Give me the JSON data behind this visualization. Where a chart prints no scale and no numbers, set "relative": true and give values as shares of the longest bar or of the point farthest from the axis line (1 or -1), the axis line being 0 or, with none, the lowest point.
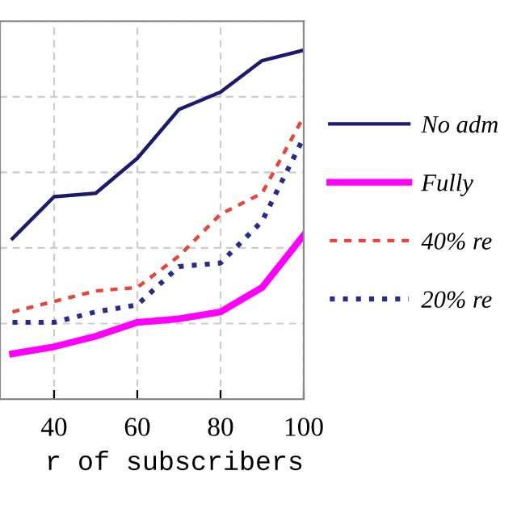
{
  "chart_data": {
    "type": "line",
    "relative": true,
    "xlabel": "r of subscribers",
    "x": [
      30,
      40,
      50,
      60,
      70,
      80,
      90,
      100
    ],
    "xlim": [
      27,
      100
    ],
    "xticks": [
      40,
      60,
      80,
      100
    ],
    "grid": true,
    "legend": "right",
    "series": [
      {
        "name": "No adm",
        "color": "#1a1a6e",
        "line_style": "solid",
        "values": [
          0.46,
          0.58,
          0.59,
          0.69,
          0.83,
          0.88,
          0.97,
          1
        ]
      },
      {
        "name": "Fully",
        "color": "#ff00ff",
        "line_style": "solid",
        "values": [
          0.13,
          0.15,
          0.18,
          0.22,
          0.23,
          0.25,
          0.32,
          0.47
        ]
      },
      {
        "name": "40% re",
        "color": "#e8443a",
        "line_style": "dashed",
        "values": [
          0.25,
          0.28,
          0.31,
          0.32,
          0.41,
          0.53,
          0.59,
          0.81
        ]
      },
      {
        "name": "20% re",
        "color": "#2a2a8a",
        "line_style": "dotted",
        "values": [
          0.22,
          0.22,
          0.25,
          0.27,
          0.38,
          0.39,
          0.51,
          0.75
        ]
      }
    ]
  }
}
